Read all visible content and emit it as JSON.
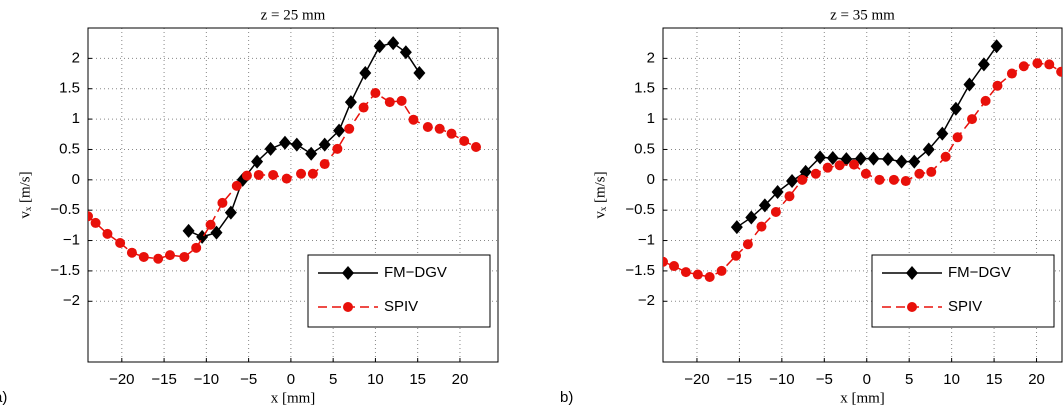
{
  "chart_data": [
    {
      "type": "line",
      "title": "z = 25 mm",
      "panel_label": "a)",
      "x_label": "x [mm]",
      "y_label": "vₓ [m/s]",
      "xlim": [
        -24,
        24.5
      ],
      "ylim": [
        -3,
        2.5
      ],
      "xticks": [
        {
          "value": -20,
          "label": "−20"
        },
        {
          "value": -15,
          "label": "−15"
        },
        {
          "value": -10,
          "label": "−10"
        },
        {
          "value": -5,
          "label": "−5"
        },
        0,
        5,
        10,
        15,
        20
      ],
      "yticks": [
        {
          "value": -2,
          "label": "−2"
        },
        {
          "value": -1.5,
          "label": "−1.5"
        },
        {
          "value": -1,
          "label": "−1"
        },
        {
          "value": -0.5,
          "label": "−0.5"
        },
        0,
        0.5,
        1,
        1.5,
        2
      ],
      "grid": true,
      "legend": "lower right",
      "series": [
        {
          "name": "FM−DGV",
          "color": "#000000",
          "marker": "diamond",
          "dash": false,
          "x": [
            -12.1,
            -10.5,
            -8.8,
            -7.1,
            -5.7,
            -4.0,
            -2.4,
            -0.7,
            0.7,
            2.4,
            4.0,
            5.7,
            7.1,
            8.8,
            10.5,
            12.1,
            13.6,
            15.2
          ],
          "values": [
            -0.84,
            -0.94,
            -0.87,
            -0.54,
            0.0,
            0.3,
            0.51,
            0.61,
            0.58,
            0.43,
            0.58,
            0.81,
            1.28,
            1.76,
            2.2,
            2.25,
            2.1,
            1.76
          ]
        },
        {
          "name": "SPIV",
          "color": "#e8100a",
          "marker": "circle",
          "dash": true,
          "x": [
            -24.0,
            -23.1,
            -21.7,
            -20.2,
            -18.8,
            -17.4,
            -15.7,
            -14.3,
            -12.6,
            -11.2,
            -9.5,
            -8.1,
            -6.4,
            -5.2,
            -3.8,
            -2.1,
            -0.5,
            1.2,
            2.6,
            4.0,
            5.5,
            6.9,
            8.6,
            10.0,
            11.7,
            13.1,
            14.5,
            16.2,
            17.6,
            19.0,
            20.5,
            21.9
          ],
          "values": [
            -0.6,
            -0.71,
            -0.89,
            -1.04,
            -1.2,
            -1.27,
            -1.3,
            -1.24,
            -1.27,
            -1.12,
            -0.74,
            -0.38,
            -0.1,
            0.07,
            0.08,
            0.08,
            0.02,
            0.1,
            0.1,
            0.26,
            0.51,
            0.84,
            1.19,
            1.43,
            1.28,
            1.3,
            0.99,
            0.87,
            0.84,
            0.76,
            0.64,
            0.54
          ]
        }
      ]
    },
    {
      "type": "line",
      "title": "z = 35 mm",
      "panel_label": "b)",
      "x_label": "x [mm]",
      "y_label": "vₓ [m/s]",
      "xlim": [
        -24,
        23
      ],
      "ylim": [
        -3,
        2.5
      ],
      "xticks": [
        {
          "value": -20,
          "label": "−20"
        },
        {
          "value": -15,
          "label": "−15"
        },
        {
          "value": -10,
          "label": "−10"
        },
        {
          "value": -5,
          "label": "−5"
        },
        0,
        5,
        10,
        15,
        20
      ],
      "yticks": [
        {
          "value": -2,
          "label": "−2"
        },
        {
          "value": -1.5,
          "label": "−1.5"
        },
        {
          "value": -1,
          "label": "−1"
        },
        {
          "value": -0.5,
          "label": "−0.5"
        },
        0,
        0.5,
        1,
        1.5,
        2
      ],
      "grid": true,
      "legend": "lower right",
      "series": [
        {
          "name": "FM−DGV",
          "color": "#000000",
          "marker": "diamond",
          "dash": false,
          "x": [
            -15.3,
            -13.6,
            -12.0,
            -10.5,
            -8.8,
            -7.2,
            -5.5,
            -4.0,
            -2.4,
            -0.7,
            0.8,
            2.5,
            4.1,
            5.6,
            7.3,
            8.9,
            10.5,
            12.1,
            13.8,
            15.3
          ],
          "values": [
            -0.78,
            -0.62,
            -0.42,
            -0.2,
            -0.02,
            0.13,
            0.37,
            0.36,
            0.34,
            0.35,
            0.35,
            0.34,
            0.3,
            0.3,
            0.5,
            0.76,
            1.17,
            1.57,
            1.9,
            2.2
          ]
        },
        {
          "name": "SPIV",
          "color": "#e8100a",
          "marker": "circle",
          "dash": true,
          "x": [
            -24.0,
            -22.7,
            -21.3,
            -19.9,
            -18.5,
            -17.1,
            -15.4,
            -14.0,
            -12.4,
            -10.7,
            -9.1,
            -7.6,
            -6.0,
            -4.6,
            -3.2,
            -1.5,
            -0.1,
            1.5,
            3.2,
            4.6,
            6.2,
            7.6,
            9.3,
            10.7,
            12.4,
            14.0,
            15.4,
            17.1,
            18.5,
            20.1,
            21.5,
            22.9
          ],
          "values": [
            -1.35,
            -1.42,
            -1.52,
            -1.56,
            -1.6,
            -1.5,
            -1.25,
            -1.06,
            -0.77,
            -0.53,
            -0.27,
            0.0,
            0.1,
            0.2,
            0.24,
            0.25,
            0.1,
            0.0,
            0.0,
            -0.02,
            0.1,
            0.13,
            0.38,
            0.7,
            1.0,
            1.3,
            1.55,
            1.75,
            1.87,
            1.92,
            1.9,
            1.78
          ]
        }
      ]
    }
  ]
}
